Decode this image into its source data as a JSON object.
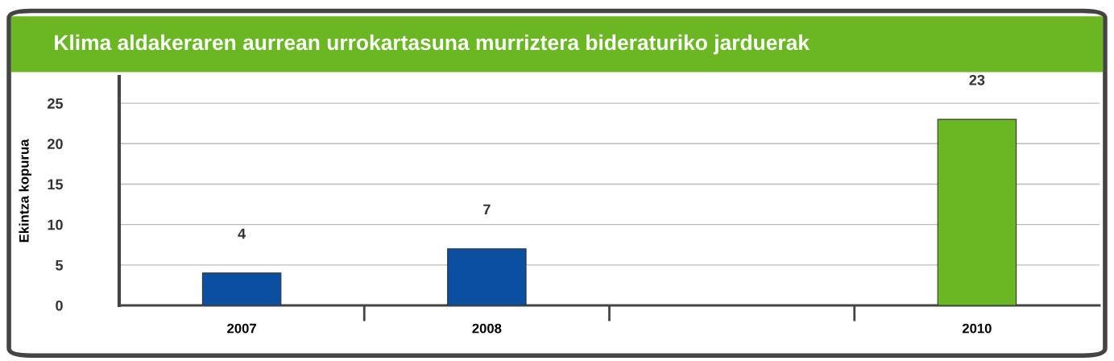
{
  "chart_data": {
    "type": "bar",
    "title": "Klima aldakeraren aurrean urrokartasuna murriztera bideraturiko jarduerak",
    "ylabel": "Ekintza kopurua",
    "categories": [
      "2007",
      "2008",
      null,
      "2010"
    ],
    "values": [
      4,
      7,
      null,
      23
    ],
    "colors": [
      "#0b4fa1",
      "#0b4fa1",
      "#0b4fa1",
      "#6ab723"
    ],
    "data_labels": true,
    "ylim": [
      0,
      28.3
    ],
    "yticks": [
      0,
      5,
      10,
      15,
      20,
      25
    ],
    "grid": "y"
  }
}
